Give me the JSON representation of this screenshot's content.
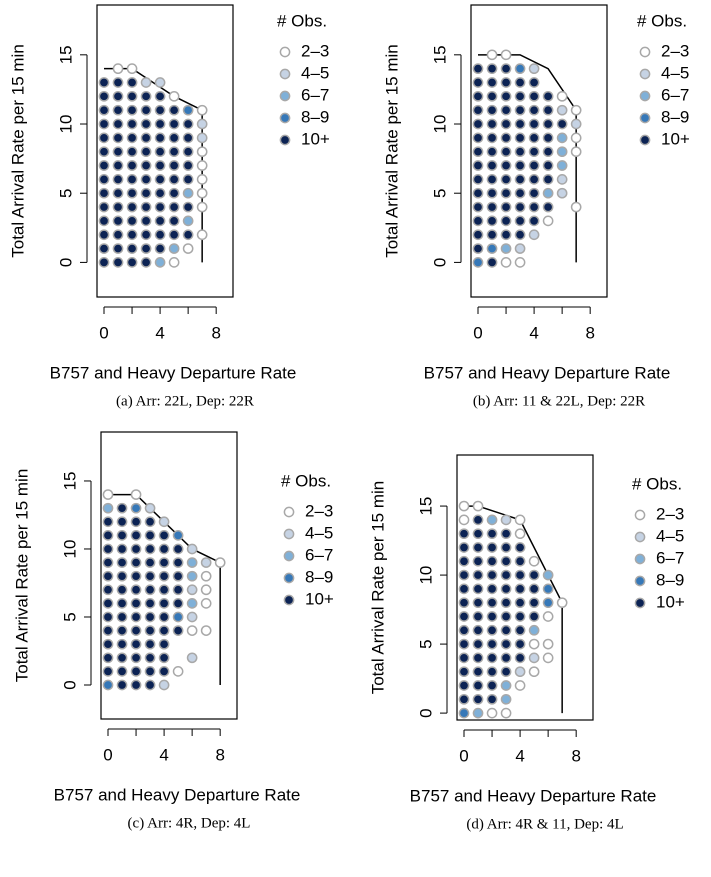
{
  "chart_data": [
    {
      "type": "scatter",
      "caption": "(a) Arr: 22L, Dep: 22R",
      "xlabel": "B757 and Heavy Departure Rate",
      "ylabel": "Total Arrival Rate per 15 min",
      "legend_title": "# Obs.",
      "xlim": [
        -0.5,
        9.2
      ],
      "ylim": [
        -2.5,
        18.6
      ],
      "xticks": [
        0,
        {
          "value": 2,
          "label": null
        },
        4,
        {
          "value": 6,
          "label": null
        },
        8
      ],
      "yticks": [
        0,
        5,
        10,
        15
      ],
      "boundary": {
        "x": [
          0,
          2,
          5,
          7,
          7
        ],
        "y": [
          14,
          14,
          12,
          11,
          0
        ]
      },
      "series": [
        {
          "name": "2–3",
          "color": "#ffffff",
          "x": [
            1,
            2,
            5,
            7,
            7,
            7,
            7,
            7,
            7,
            7,
            6,
            5
          ],
          "values": [
            14,
            14,
            12,
            11,
            8,
            7,
            6,
            5,
            4,
            2,
            1,
            0
          ]
        },
        {
          "name": "4–5",
          "color": "#c6d3e4",
          "x": [
            3,
            4,
            7,
            7
          ],
          "values": [
            13,
            13,
            10,
            9
          ]
        },
        {
          "name": "6–7",
          "color": "#7fb0d8",
          "x": [
            6,
            6,
            5,
            4
          ],
          "values": [
            5,
            3,
            1,
            0
          ]
        },
        {
          "name": "8–9",
          "color": "#3678b8",
          "x": [
            6
          ],
          "values": [
            11
          ]
        },
        {
          "name": "10+",
          "color": "#0c2354",
          "x": [
            0,
            1,
            2,
            0,
            1,
            2,
            3,
            4,
            0,
            1,
            2,
            3,
            4,
            5,
            0,
            1,
            2,
            3,
            4,
            5,
            6,
            0,
            1,
            2,
            3,
            4,
            5,
            6,
            0,
            1,
            2,
            3,
            4,
            5,
            6,
            0,
            1,
            2,
            3,
            4,
            5,
            6,
            0,
            1,
            2,
            3,
            4,
            5,
            6,
            0,
            1,
            2,
            3,
            4,
            5,
            0,
            1,
            2,
            3,
            4,
            5,
            6,
            0,
            1,
            2,
            3,
            4,
            5,
            0,
            1,
            2,
            3,
            4,
            5,
            6,
            0,
            1,
            2,
            3,
            4,
            0,
            1,
            2,
            3
          ],
          "values": [
            13,
            13,
            13,
            12,
            12,
            12,
            12,
            12,
            11,
            11,
            11,
            11,
            11,
            11,
            10,
            10,
            10,
            10,
            10,
            10,
            10,
            9,
            9,
            9,
            9,
            9,
            9,
            9,
            8,
            8,
            8,
            8,
            8,
            8,
            8,
            7,
            7,
            7,
            7,
            7,
            7,
            7,
            6,
            6,
            6,
            6,
            6,
            6,
            6,
            5,
            5,
            5,
            5,
            5,
            5,
            4,
            4,
            4,
            4,
            4,
            4,
            4,
            3,
            3,
            3,
            3,
            3,
            3,
            2,
            2,
            2,
            2,
            2,
            2,
            2,
            1,
            1,
            1,
            1,
            1,
            0,
            0,
            0,
            0
          ]
        }
      ]
    },
    {
      "type": "scatter",
      "caption": "(b) Arr: 11 & 22L, Dep: 22R",
      "xlabel": "B757 and Heavy Departure Rate",
      "ylabel": "Total Arrival Rate per 15 min",
      "legend_title": "# Obs.",
      "xlim": [
        -0.5,
        9.2
      ],
      "ylim": [
        -2.5,
        18.6
      ],
      "xticks": [
        0,
        {
          "value": 2,
          "label": null
        },
        4,
        {
          "value": 6,
          "label": null
        },
        8
      ],
      "yticks": [
        0,
        5,
        10,
        15
      ],
      "boundary": {
        "x": [
          0,
          3,
          5,
          7,
          7
        ],
        "y": [
          15,
          15,
          14,
          11,
          0
        ]
      },
      "series": [
        {
          "name": "2–3",
          "color": "#ffffff",
          "x": [
            1,
            2,
            6,
            7,
            7,
            7,
            7,
            5,
            2,
            3
          ],
          "values": [
            15,
            15,
            12,
            11,
            9,
            8,
            4,
            3,
            0,
            0
          ]
        },
        {
          "name": "4–5",
          "color": "#c6d3e4",
          "x": [
            4,
            6,
            7,
            6,
            6,
            4,
            3
          ],
          "values": [
            14,
            11,
            10,
            6,
            5,
            2,
            1
          ]
        },
        {
          "name": "6–7",
          "color": "#7fb0d8",
          "x": [
            6,
            6,
            6,
            5,
            2
          ],
          "values": [
            9,
            8,
            7,
            5,
            1
          ]
        },
        {
          "name": "8–9",
          "color": "#3678b8",
          "x": [
            3,
            1,
            0
          ],
          "values": [
            14,
            1,
            0
          ]
        },
        {
          "name": "10+",
          "color": "#0c2354",
          "x": [
            0,
            1,
            2,
            0,
            1,
            2,
            3,
            4,
            0,
            1,
            2,
            3,
            4,
            5,
            0,
            1,
            2,
            3,
            4,
            5,
            0,
            1,
            2,
            3,
            4,
            5,
            6,
            0,
            1,
            2,
            3,
            4,
            5,
            0,
            1,
            2,
            3,
            4,
            5,
            0,
            1,
            2,
            3,
            4,
            5,
            0,
            1,
            2,
            3,
            4,
            5,
            0,
            1,
            2,
            3,
            4,
            0,
            1,
            2,
            3,
            4,
            5,
            0,
            1,
            2,
            3,
            4,
            0,
            1,
            2,
            3,
            0,
            1
          ],
          "values": [
            14,
            14,
            14,
            13,
            13,
            13,
            13,
            13,
            12,
            12,
            12,
            12,
            12,
            12,
            11,
            11,
            11,
            11,
            11,
            11,
            10,
            10,
            10,
            10,
            10,
            10,
            10,
            9,
            9,
            9,
            9,
            9,
            9,
            8,
            8,
            8,
            8,
            8,
            8,
            7,
            7,
            7,
            7,
            7,
            7,
            6,
            6,
            6,
            6,
            6,
            6,
            5,
            5,
            5,
            5,
            5,
            4,
            4,
            4,
            4,
            4,
            4,
            3,
            3,
            3,
            3,
            3,
            2,
            2,
            2,
            2,
            1,
            0
          ]
        }
      ]
    },
    {
      "type": "scatter",
      "caption": "(c) Arr: 4R, Dep: 4L",
      "xlabel": "B757 and Heavy Departure Rate",
      "ylabel": "Total Arrival Rate per 15 min",
      "legend_title": "# Obs.",
      "xlim": [
        -0.5,
        9.2
      ],
      "ylim": [
        -2.5,
        18.6
      ],
      "xticks": [
        0,
        {
          "value": 2,
          "label": null
        },
        4,
        {
          "value": 6,
          "label": null
        },
        8
      ],
      "yticks": [
        0,
        5,
        10,
        15
      ],
      "boundary": {
        "x": [
          0,
          2,
          6,
          8,
          8
        ],
        "y": [
          14,
          14,
          10,
          9,
          0
        ]
      },
      "series": [
        {
          "name": "2–3",
          "color": "#ffffff",
          "x": [
            0,
            2,
            8,
            7,
            7,
            7,
            6,
            7,
            5
          ],
          "values": [
            14,
            14,
            9,
            8,
            7,
            6,
            4,
            4,
            1
          ]
        },
        {
          "name": "4–5",
          "color": "#c6d3e4",
          "x": [
            3,
            4,
            6,
            7,
            6,
            6,
            6,
            4
          ],
          "values": [
            13,
            12,
            10,
            9,
            7,
            5,
            2,
            0
          ]
        },
        {
          "name": "6–7",
          "color": "#7fb0d8",
          "x": [
            0,
            6,
            6,
            6
          ],
          "values": [
            13,
            9,
            8,
            6
          ]
        },
        {
          "name": "8–9",
          "color": "#3678b8",
          "x": [
            2,
            5,
            5,
            0
          ],
          "values": [
            13,
            11,
            5,
            0
          ]
        },
        {
          "name": "10+",
          "color": "#0c2354",
          "x": [
            1,
            0,
            1,
            2,
            3,
            0,
            1,
            2,
            3,
            4,
            0,
            1,
            2,
            3,
            4,
            5,
            0,
            1,
            2,
            3,
            4,
            5,
            0,
            1,
            2,
            3,
            4,
            5,
            0,
            1,
            2,
            3,
            4,
            5,
            0,
            1,
            2,
            3,
            4,
            5,
            0,
            1,
            2,
            3,
            4,
            0,
            1,
            2,
            3,
            4,
            5,
            0,
            1,
            2,
            3,
            4,
            0,
            1,
            2,
            3,
            4,
            0,
            1,
            2,
            3,
            4,
            1,
            2,
            3
          ],
          "values": [
            13,
            12,
            12,
            12,
            12,
            11,
            11,
            11,
            11,
            11,
            10,
            10,
            10,
            10,
            10,
            10,
            9,
            9,
            9,
            9,
            9,
            9,
            8,
            8,
            8,
            8,
            8,
            8,
            7,
            7,
            7,
            7,
            7,
            7,
            6,
            6,
            6,
            6,
            6,
            6,
            5,
            5,
            5,
            5,
            5,
            4,
            4,
            4,
            4,
            4,
            4,
            3,
            3,
            3,
            3,
            3,
            2,
            2,
            2,
            2,
            2,
            1,
            1,
            1,
            1,
            1,
            0,
            0,
            0
          ]
        }
      ]
    },
    {
      "type": "scatter",
      "caption": "(d) Arr: 4R & 11, Dep: 4L",
      "xlabel": "B757 and Heavy Departure Rate",
      "ylabel": "Total Arrival Rate per 15 min",
      "legend_title": "# Obs.",
      "xlim": [
        -0.5,
        9.2
      ],
      "ylim": [
        -0.5,
        18.7
      ],
      "xticks": [
        0,
        {
          "value": 2,
          "label": null
        },
        4,
        {
          "value": 6,
          "label": null
        },
        8
      ],
      "yticks": [
        0,
        5,
        10,
        15
      ],
      "boundary": {
        "x": [
          0,
          1,
          4,
          7,
          7
        ],
        "y": [
          15,
          15,
          14,
          8,
          0
        ]
      },
      "series": [
        {
          "name": "2–3",
          "color": "#ffffff",
          "x": [
            0,
            1,
            0,
            4,
            4,
            5,
            7,
            6,
            5,
            6,
            6,
            5,
            4,
            2,
            3
          ],
          "values": [
            15,
            15,
            14,
            14,
            13,
            11,
            8,
            7,
            5,
            5,
            4,
            3,
            2,
            0,
            0
          ]
        },
        {
          "name": "4–5",
          "color": "#c6d3e4",
          "x": [
            3,
            5,
            4
          ],
          "values": [
            14,
            4,
            3
          ]
        },
        {
          "name": "6–7",
          "color": "#7fb0d8",
          "x": [
            2,
            6,
            5,
            3,
            3,
            1
          ],
          "values": [
            14,
            10,
            6,
            2,
            1,
            0
          ]
        },
        {
          "name": "8–9",
          "color": "#3678b8",
          "x": [
            6,
            6,
            0
          ],
          "values": [
            9,
            8,
            0
          ]
        },
        {
          "name": "10+",
          "color": "#0c2354",
          "x": [
            1,
            0,
            1,
            2,
            3,
            0,
            1,
            2,
            3,
            4,
            0,
            1,
            2,
            3,
            4,
            0,
            1,
            2,
            3,
            4,
            5,
            0,
            1,
            2,
            3,
            4,
            5,
            0,
            1,
            2,
            3,
            4,
            5,
            0,
            1,
            2,
            3,
            4,
            5,
            0,
            1,
            2,
            3,
            4,
            0,
            1,
            2,
            3,
            4,
            0,
            1,
            2,
            3,
            4,
            0,
            1,
            2,
            3,
            0,
            1,
            2,
            0,
            1,
            2
          ],
          "values": [
            14,
            13,
            13,
            13,
            13,
            12,
            12,
            12,
            12,
            12,
            11,
            11,
            11,
            11,
            11,
            10,
            10,
            10,
            10,
            10,
            10,
            9,
            9,
            9,
            9,
            9,
            9,
            8,
            8,
            8,
            8,
            8,
            8,
            7,
            7,
            7,
            7,
            7,
            7,
            6,
            6,
            6,
            6,
            6,
            5,
            5,
            5,
            5,
            5,
            4,
            4,
            4,
            4,
            4,
            3,
            3,
            3,
            3,
            2,
            2,
            2,
            1,
            1,
            1
          ]
        }
      ]
    }
  ]
}
